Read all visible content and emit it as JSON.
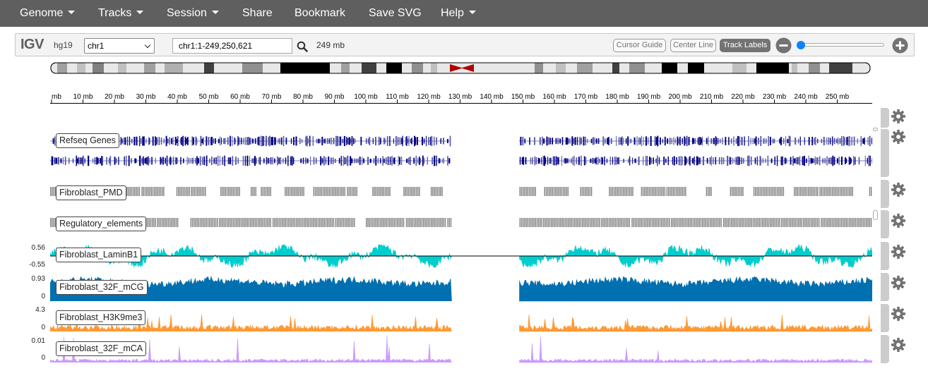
{
  "navbar": {
    "items": [
      {
        "label": "Genome",
        "dropdown": true
      },
      {
        "label": "Tracks",
        "dropdown": true
      },
      {
        "label": "Session",
        "dropdown": true
      },
      {
        "label": "Share",
        "dropdown": false
      },
      {
        "label": "Bookmark",
        "dropdown": false
      },
      {
        "label": "Save SVG",
        "dropdown": false
      },
      {
        "label": "Help",
        "dropdown": true
      }
    ]
  },
  "controls": {
    "logo": "IGV",
    "genome": "hg19",
    "chromosome": "chr1",
    "locus": "chr1:1-249,250,621",
    "window_size": "249 mb",
    "cursor_guide": "Cursor Guide",
    "center_line": "Center Line",
    "track_labels": "Track Labels",
    "zoom_level": 0
  },
  "ruler": {
    "ticks": [
      "mb",
      "10 mb",
      "20 mb",
      "30 mb",
      "40 mb",
      "50 mb",
      "60 mb",
      "70 mb",
      "80 mb",
      "90 mb",
      "100 mb",
      "110 mb",
      "120 mb",
      "130 mb",
      "140 mb",
      "150 mb",
      "160 mb",
      "170 mb",
      "180 mb",
      "190 mb",
      "200 mb",
      "210 mb",
      "220 mb",
      "230 mb",
      "240 mb",
      "250 mb"
    ]
  },
  "tracks": [
    {
      "name": "Refseq Genes",
      "type": "annotation",
      "color": "#000080"
    },
    {
      "name": "Fibroblast_PMD",
      "type": "annotation",
      "color": "#808080"
    },
    {
      "name": "Regulatory_elements",
      "type": "annotation",
      "color": "#808080"
    },
    {
      "name": "Fibroblast_LaminB1",
      "type": "wig",
      "color": "#00cdcd",
      "max": "0.56",
      "min": "-0.55"
    },
    {
      "name": "Fibroblast_32F_mCG",
      "type": "wig",
      "color": "#0070b0",
      "max": "0.93",
      "min": "0"
    },
    {
      "name": "Fibroblast_H3K9me3",
      "type": "wig",
      "color": "#ff9933",
      "max": "4.3",
      "min": "0"
    },
    {
      "name": "Fibroblast_32F_mCA",
      "type": "wig",
      "color": "#cc99ff",
      "max": "0.01",
      "min": "0"
    }
  ]
}
